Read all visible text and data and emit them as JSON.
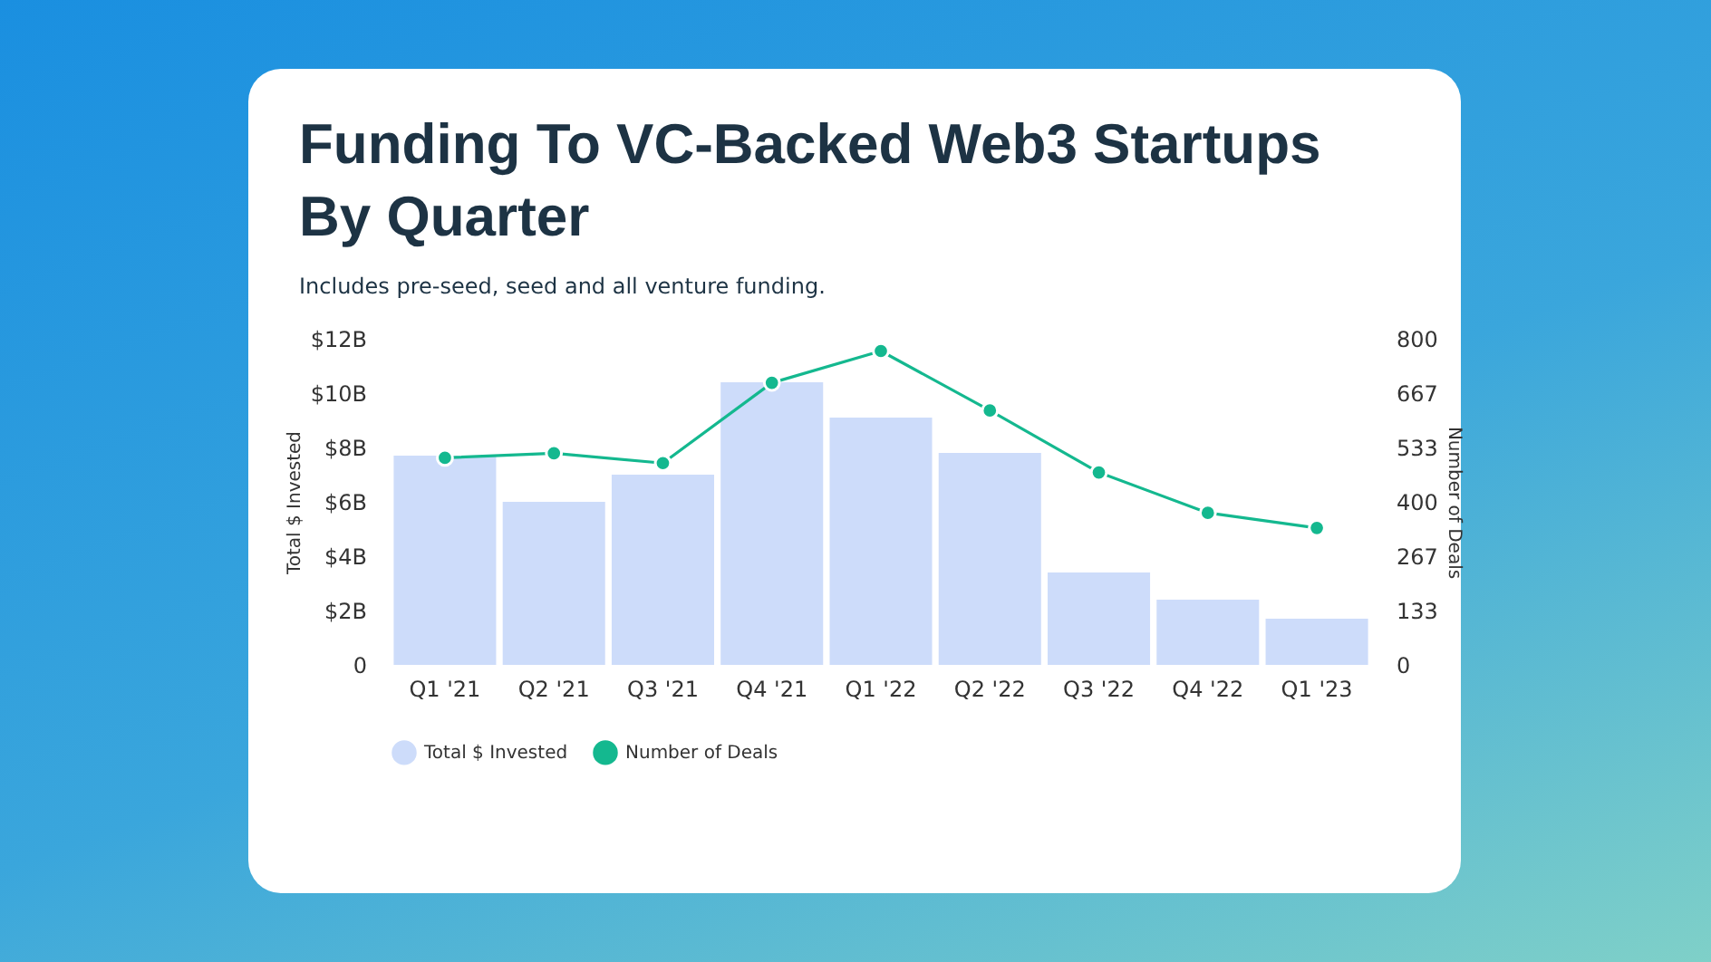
{
  "chart_data": {
    "type": "bar",
    "title": "Funding To VC-Backed Web3 Startups By Quarter",
    "subtitle": "Includes pre-seed, seed and all venture funding.",
    "ylabel": "Total $ Invested",
    "y2label": "Number of Deals",
    "categories": [
      "Q1 '21",
      "Q2 '21",
      "Q3 '21",
      "Q4 '21",
      "Q1 '22",
      "Q2 '22",
      "Q3 '22",
      "Q4 '22",
      "Q1 '23"
    ],
    "series": [
      {
        "name": "Total $ Invested",
        "color": "#cddcfa",
        "values": [
          7.7,
          6.0,
          7.0,
          10.4,
          9.1,
          7.8,
          3.4,
          2.4,
          1.7
        ]
      },
      {
        "name": "Number of Deals",
        "type": "line",
        "axis": "y2",
        "color": "#14b88f",
        "values": [
          508,
          519,
          495,
          692,
          770,
          624,
          472,
          373,
          336
        ]
      }
    ],
    "ylim": [
      0,
      12
    ],
    "yticks": [
      0,
      {
        "value": 2,
        "label": "$2B"
      },
      {
        "value": 4,
        "label": "$4B"
      },
      {
        "value": 6,
        "label": "$6B"
      },
      {
        "value": 8,
        "label": "$8B"
      },
      {
        "value": 10,
        "label": "$10B"
      },
      {
        "value": 12,
        "label": "$12B"
      }
    ],
    "y2lim": [
      0,
      800
    ],
    "y2ticks": [
      0,
      133,
      267,
      400,
      533,
      667,
      800
    ],
    "legend": "bottom",
    "marker": "circle"
  }
}
